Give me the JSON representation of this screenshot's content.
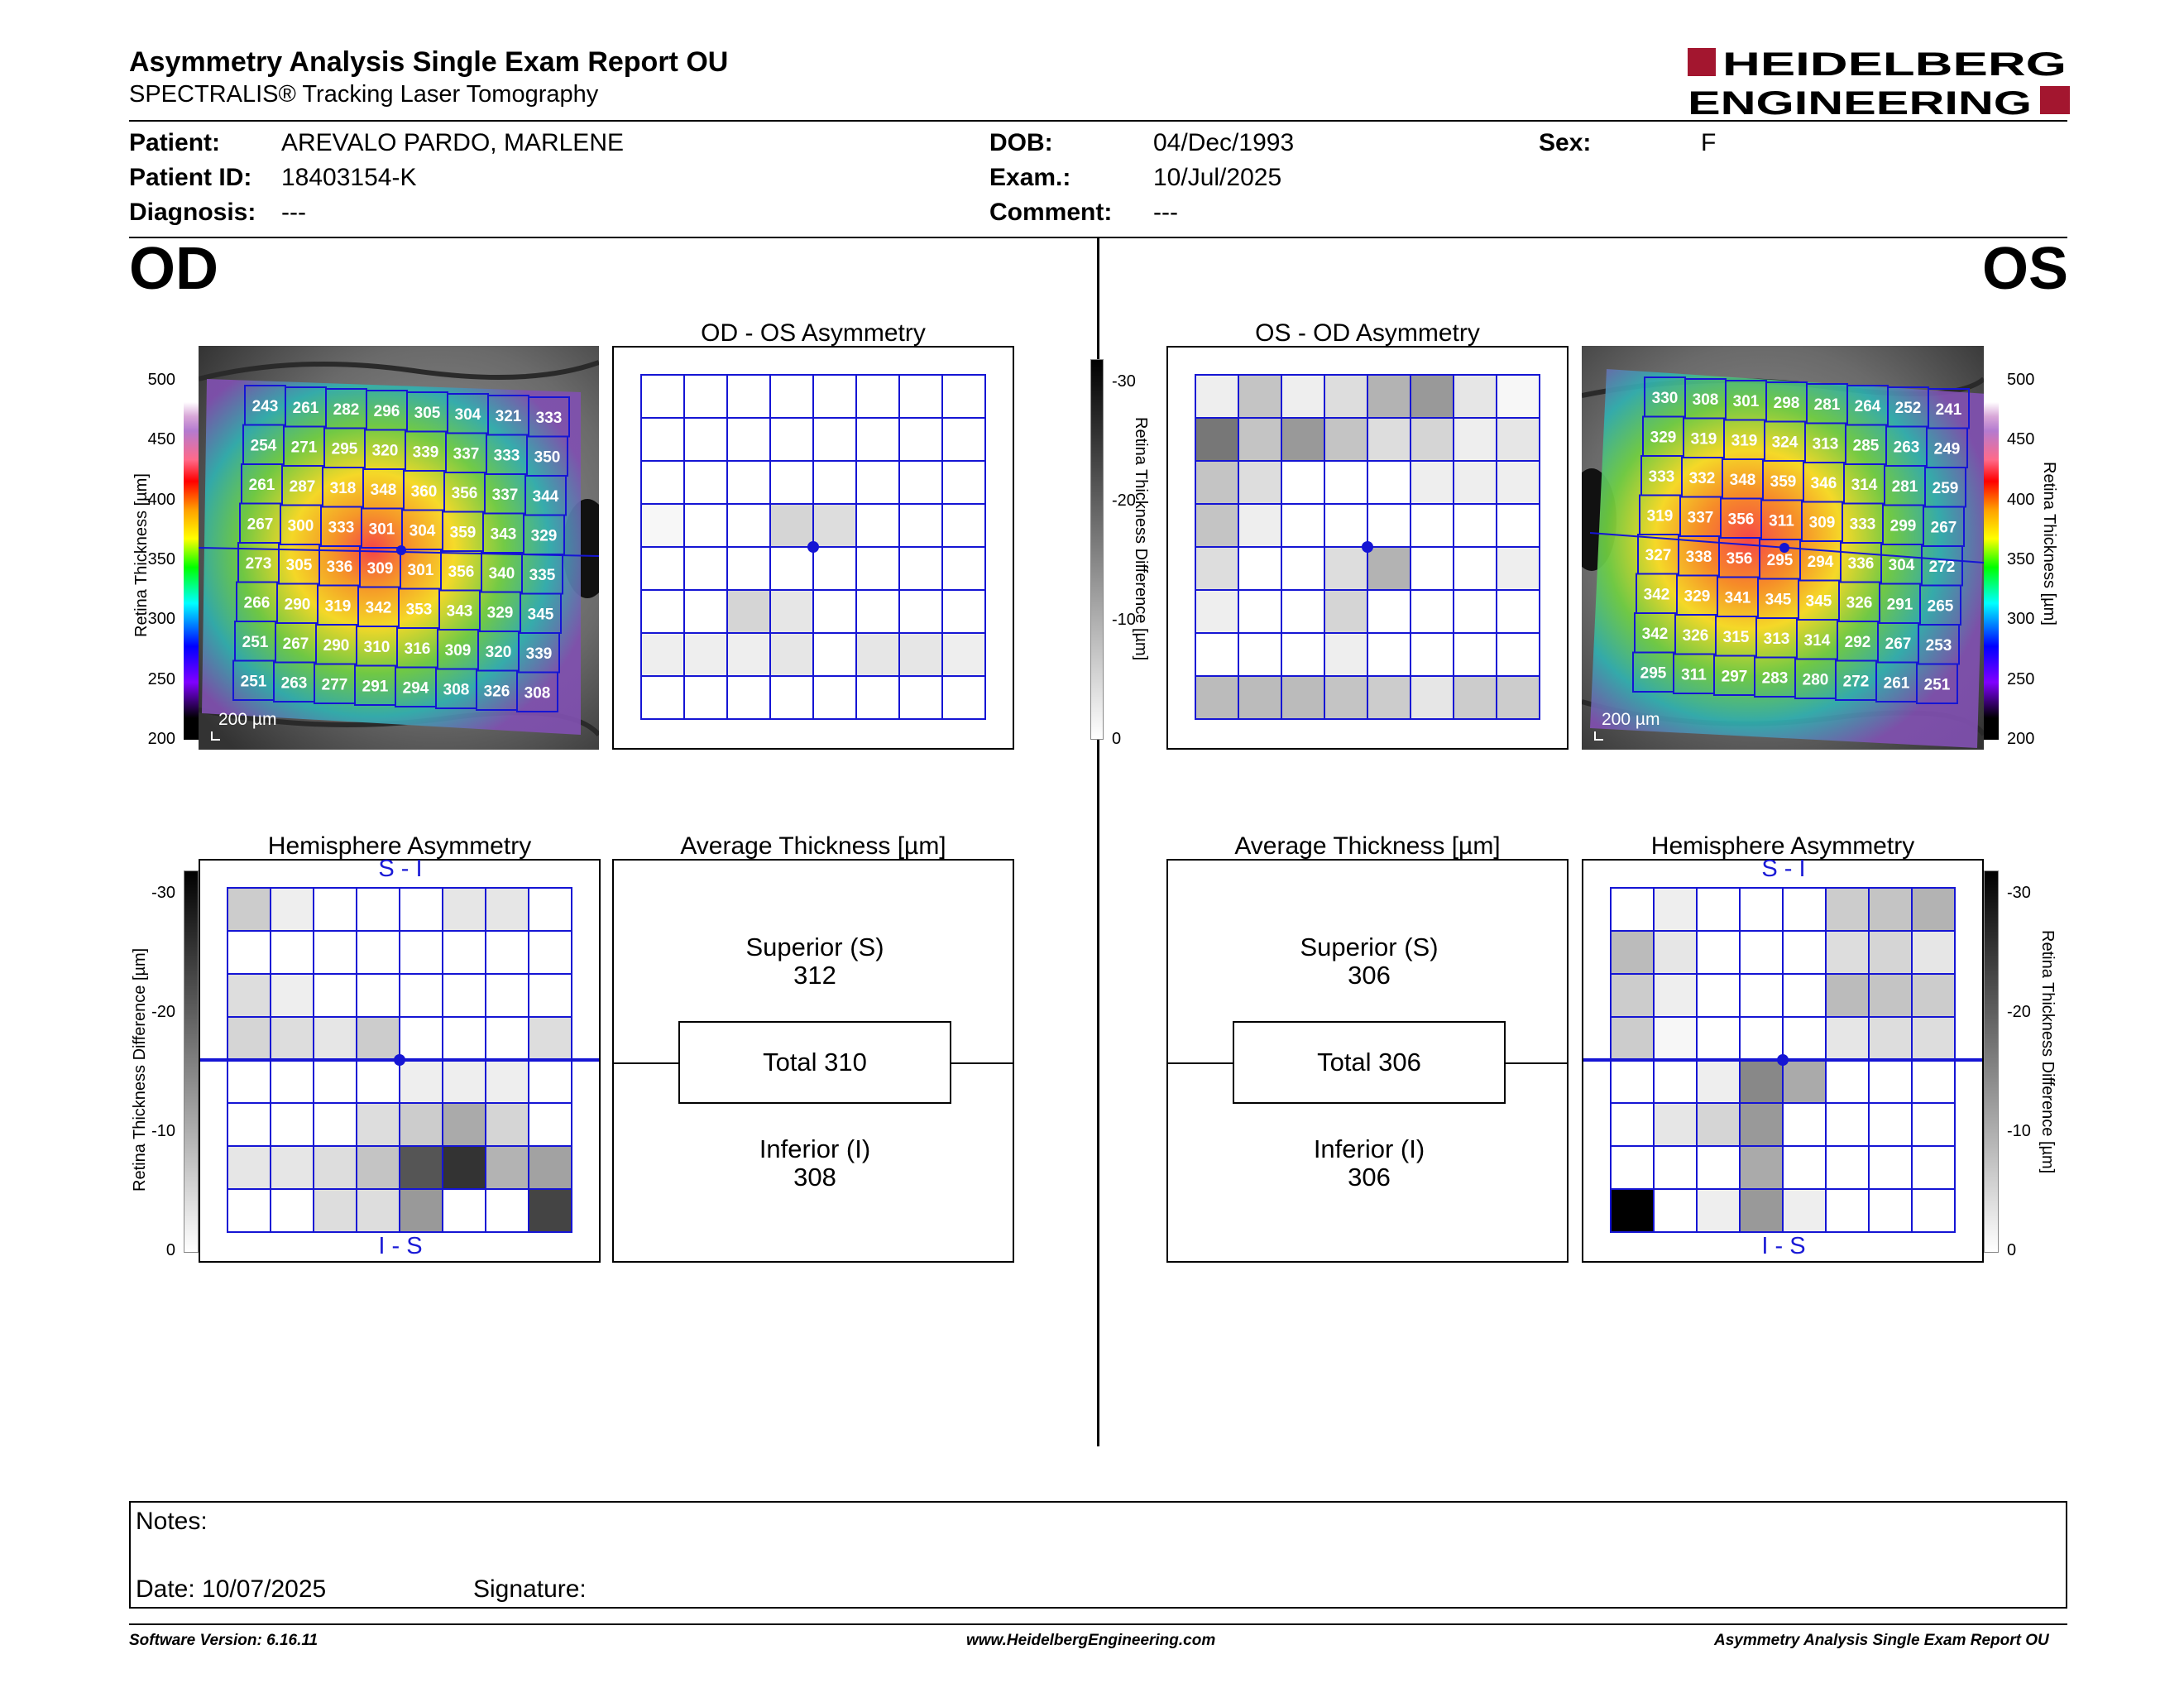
{
  "header": {
    "title": "Asymmetry Analysis Single Exam Report OU",
    "subtitle": "SPECTRALIS® Tracking Laser Tomography",
    "logo_top": "HEIDELBERG",
    "logo_bottom": "ENGINEERING"
  },
  "patient": {
    "patient_label": "Patient:",
    "patient_value": "AREVALO PARDO, MARLENE",
    "id_label": "Patient ID:",
    "id_value": "18403154-K",
    "diag_label": "Diagnosis:",
    "diag_value": "---",
    "dob_label": "DOB:",
    "dob_value": "04/Dec/1993",
    "exam_label": "Exam.:",
    "exam_value": "10/Jul/2025",
    "comment_label": "Comment:",
    "comment_value": "---",
    "sex_label": "Sex:",
    "sex_value": "F"
  },
  "od": {
    "eye_label": "OD",
    "asym_title": "OD - OS Asymmetry",
    "hemi_title": "Hemisphere Asymmetry",
    "avg_title": "Average Thickness [µm]",
    "superior_label": "Superior (S)",
    "superior_value": "312",
    "total_label": "Total 310",
    "inferior_label": "Inferior (I)",
    "inferior_value": "308",
    "scale_bar": "200 µm",
    "hemi_top": "S - I",
    "hemi_bottom": "I - S",
    "thickness_grid": [
      [
        243,
        261,
        282,
        296,
        305,
        304,
        321,
        333
      ],
      [
        254,
        271,
        295,
        320,
        339,
        337,
        333,
        350
      ],
      [
        261,
        287,
        318,
        348,
        360,
        356,
        337,
        344
      ],
      [
        267,
        300,
        333,
        301,
        304,
        359,
        343,
        329
      ],
      [
        273,
        305,
        336,
        309,
        301,
        356,
        340,
        335
      ],
      [
        266,
        290,
        319,
        342,
        353,
        343,
        329,
        345
      ],
      [
        251,
        267,
        290,
        310,
        316,
        309,
        320,
        339
      ],
      [
        251,
        263,
        277,
        291,
        294,
        308,
        326,
        308
      ]
    ],
    "asym_grid": [
      [
        0,
        0,
        0,
        0,
        0,
        0,
        0,
        0
      ],
      [
        0,
        0,
        0,
        0,
        0,
        0,
        0,
        0
      ],
      [
        0,
        0,
        0,
        0,
        0,
        0,
        0,
        0
      ],
      [
        1,
        0,
        0,
        5,
        4,
        0,
        0,
        0
      ],
      [
        0,
        0,
        0,
        0,
        0,
        0,
        0,
        0
      ],
      [
        0,
        0,
        5,
        3,
        0,
        0,
        0,
        0
      ],
      [
        2,
        2,
        2,
        3,
        0,
        3,
        3,
        2
      ],
      [
        0,
        0,
        0,
        0,
        0,
        0,
        0,
        0
      ]
    ],
    "hemi_grid": [
      [
        6,
        2,
        0,
        0,
        0,
        3,
        3,
        0
      ],
      [
        0,
        0,
        0,
        0,
        0,
        0,
        0,
        0
      ],
      [
        4,
        2,
        0,
        0,
        0,
        0,
        0,
        0
      ],
      [
        5,
        4,
        3,
        6,
        0,
        0,
        0,
        4
      ],
      [
        0,
        0,
        0,
        0,
        2,
        2,
        2,
        0
      ],
      [
        0,
        0,
        0,
        4,
        6,
        10,
        5,
        0
      ],
      [
        3,
        3,
        4,
        7,
        20,
        24,
        9,
        11
      ],
      [
        0,
        0,
        4,
        4,
        12,
        0,
        0,
        22
      ]
    ]
  },
  "os": {
    "eye_label": "OS",
    "asym_title": "OS - OD Asymmetry",
    "hemi_title": "Hemisphere Asymmetry",
    "avg_title": "Average Thickness [µm]",
    "superior_label": "Superior (S)",
    "superior_value": "306",
    "total_label": "Total 306",
    "inferior_label": "Inferior (I)",
    "inferior_value": "306",
    "scale_bar": "200 µm",
    "hemi_top": "S - I",
    "hemi_bottom": "I - S",
    "thickness_grid": [
      [
        330,
        308,
        301,
        298,
        281,
        264,
        252,
        241
      ],
      [
        329,
        319,
        319,
        324,
        313,
        285,
        263,
        249
      ],
      [
        333,
        332,
        348,
        359,
        346,
        314,
        281,
        259
      ],
      [
        319,
        337,
        356,
        311,
        309,
        333,
        299,
        267
      ],
      [
        327,
        338,
        356,
        295,
        294,
        336,
        304,
        272
      ],
      [
        342,
        329,
        341,
        345,
        345,
        326,
        291,
        265
      ],
      [
        342,
        326,
        315,
        313,
        314,
        292,
        267,
        253
      ],
      [
        295,
        311,
        297,
        283,
        280,
        272,
        261,
        251
      ]
    ],
    "asym_grid": [
      [
        2,
        7,
        2,
        4,
        9,
        12,
        3,
        1
      ],
      [
        16,
        7,
        12,
        7,
        4,
        5,
        2,
        3
      ],
      [
        7,
        4,
        0,
        0,
        0,
        2,
        2,
        2
      ],
      [
        7,
        2,
        0,
        0,
        0,
        0,
        0,
        0
      ],
      [
        4,
        0,
        0,
        4,
        9,
        0,
        0,
        2
      ],
      [
        2,
        0,
        0,
        5,
        0,
        0,
        0,
        0
      ],
      [
        0,
        0,
        0,
        2,
        0,
        0,
        0,
        0
      ],
      [
        8,
        8,
        8,
        7,
        6,
        3,
        6,
        6
      ]
    ],
    "hemi_grid": [
      [
        0,
        2,
        0,
        0,
        0,
        6,
        7,
        9
      ],
      [
        8,
        3,
        0,
        0,
        0,
        4,
        5,
        3
      ],
      [
        6,
        2,
        0,
        0,
        0,
        8,
        7,
        6
      ],
      [
        6,
        1,
        0,
        0,
        0,
        3,
        4,
        4
      ],
      [
        0,
        0,
        2,
        14,
        10,
        0,
        0,
        0
      ],
      [
        0,
        3,
        5,
        12,
        0,
        0,
        0,
        0
      ],
      [
        0,
        0,
        0,
        10,
        0,
        0,
        0,
        0
      ],
      [
        30,
        0,
        2,
        12,
        2,
        0,
        0,
        0
      ]
    ]
  },
  "scales": {
    "thickness_label": "Retina Thickness [µm]",
    "thickness_ticks": [
      "500",
      "450",
      "400",
      "350",
      "300",
      "250",
      "200"
    ],
    "diff_label": "Retina Thickness Difference [µm]",
    "diff_ticks": [
      "-30",
      "-20",
      "-10",
      "0"
    ]
  },
  "notes": {
    "notes_label": "Notes:",
    "date_label": "Date: 10/07/2025",
    "signature_label": "Signature:"
  },
  "footer": {
    "left": "Software Version: 6.16.11",
    "center": "www.HeidelbergEngineering.com",
    "right": "Asymmetry Analysis Single Exam Report OU"
  },
  "colors": {
    "grid_blue": "#1515d4",
    "logo_red": "#a3162f"
  }
}
